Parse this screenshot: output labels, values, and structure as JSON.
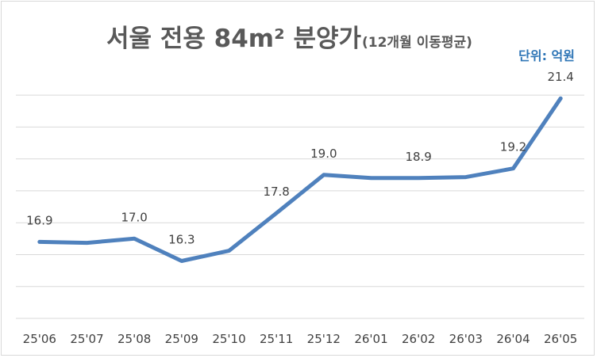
{
  "chart_data": {
    "type": "line",
    "title": "서울 전용 84m² 분양가",
    "subtitle": "(12개월 이동평균)",
    "unit_label": "단위: 억원",
    "categories": [
      "25'06",
      "25'07",
      "25'08",
      "25'09",
      "25'10",
      "25'11",
      "25'12",
      "26'01",
      "26'02",
      "26'03",
      "26'04",
      "26'05"
    ],
    "series": [
      {
        "values": [
          16.9,
          16.87,
          17.0,
          16.3,
          16.62,
          17.8,
          19.0,
          18.9,
          18.9,
          18.93,
          19.2,
          21.4
        ],
        "labels": [
          "16.9",
          null,
          "17.0",
          "16.3",
          null,
          "17.8",
          "19.0",
          null,
          "18.9",
          null,
          "19.2",
          "21.4"
        ],
        "color": "#4f81bd"
      }
    ],
    "ylim": [
      14.5,
      22.0
    ],
    "gridlines": [
      14.5,
      15.5,
      16.5,
      17.5,
      18.5,
      19.5,
      20.5,
      21.5
    ],
    "grid": true,
    "legend": "none"
  }
}
